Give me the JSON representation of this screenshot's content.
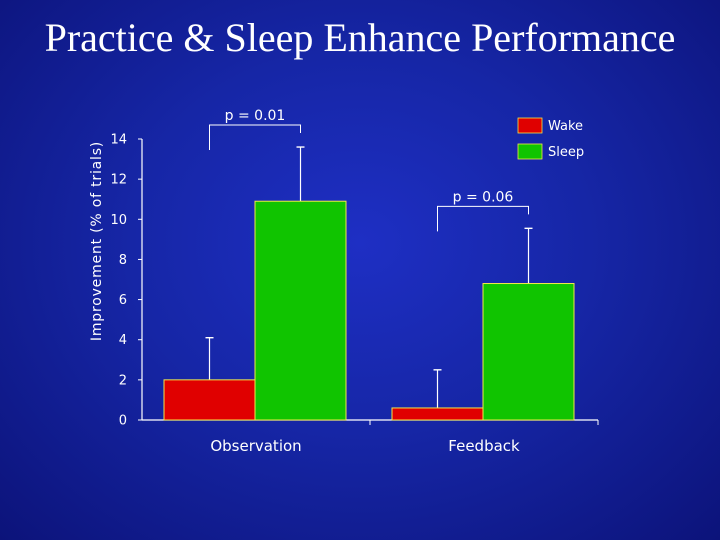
{
  "slide": {
    "title": "Practice & Sleep Enhance Performance"
  },
  "chart_data": {
    "type": "bar",
    "ylabel": "Improvement (% of trials)",
    "xlabel": "",
    "ylim": [
      0,
      14
    ],
    "yticks": [
      0,
      2,
      4,
      6,
      8,
      10,
      12,
      14
    ],
    "grid": false,
    "legend_position": "top-right",
    "categories": [
      "Observation",
      "Feedback"
    ],
    "series": [
      {
        "name": "Wake",
        "color": "#e00000",
        "values": [
          2.0,
          0.6
        ],
        "error": [
          2.1,
          1.9
        ]
      },
      {
        "name": "Sleep",
        "color": "#10c400",
        "values": [
          10.9,
          6.8
        ],
        "error": [
          2.7,
          2.75
        ]
      }
    ],
    "annotations": [
      {
        "text": "p = 0.01",
        "category_index": 0
      },
      {
        "text": "p = 0.06",
        "category_index": 1
      }
    ]
  }
}
